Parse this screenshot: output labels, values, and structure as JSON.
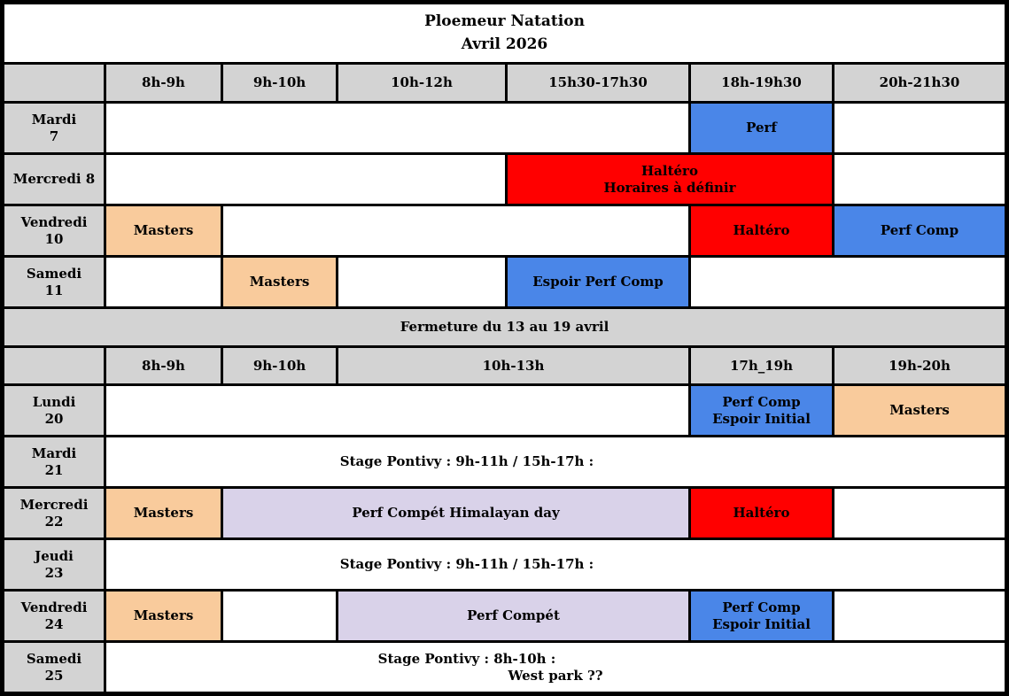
{
  "title": {
    "l1": "Ploemeur Natation",
    "l2": "Avril 2026"
  },
  "colors": {
    "blue": "#4a86e8",
    "red": "#ff0000",
    "orange": "#f9cb9c",
    "purple": "#d9d2e9",
    "gray": "#d3d3d3"
  },
  "header1": [
    "8h-9h",
    "9h-10h",
    "10h-12h",
    "15h30-17h30",
    "18h-19h30",
    "20h-21h30"
  ],
  "header2": [
    "8h-9h",
    "9h-10h",
    "10h-13h",
    "17h_19h",
    "19h-20h"
  ],
  "banner": "Fermeture du 13 au 19 avril",
  "days1": [
    [
      "Mardi",
      "7"
    ],
    [
      "Mercredi 8"
    ],
    [
      "Vendredi",
      "10"
    ],
    [
      "Samedi",
      "11"
    ]
  ],
  "days2": [
    [
      "Lundi",
      "20"
    ],
    [
      "Mardi",
      "21"
    ],
    [
      "Mercredi",
      "22"
    ],
    [
      "Jeudi",
      "23"
    ],
    [
      "Vendredi",
      "24"
    ],
    [
      "Samedi",
      "25"
    ]
  ],
  "events": {
    "perf": "Perf",
    "haltero_horaires": [
      "Haltéro",
      "Horaires à définir"
    ],
    "masters": "Masters",
    "haltero": "Haltéro",
    "perf_comp": "Perf Comp",
    "espoir_perf_comp": "Espoir Perf Comp",
    "perf_comp_espoir": [
      "Perf Comp",
      "Espoir Initial"
    ],
    "stage_pontivy_a": "Stage Pontivy : 9h-11h / 15h-17h :",
    "perf_compet_himalayan": "Perf Compét Himalayan day",
    "perf_compet": "Perf Compét",
    "stage_pontivy_b": [
      "Stage Pontivy : 8h-10h :",
      "West park ??"
    ]
  }
}
